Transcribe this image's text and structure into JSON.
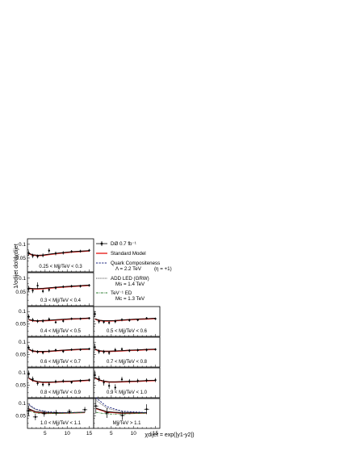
{
  "chart_data": {
    "type": "scatter",
    "ylabel": "1/σdijet dσ/dχdijet",
    "xlabel": "χdijet = exp(|y1-y2|)",
    "xlim": [
      1,
      16
    ],
    "ylim": [
      0,
      0.12
    ],
    "xticks": [
      5,
      10,
      15
    ],
    "yticks": [
      0.05,
      0.1
    ],
    "legend": {
      "placement": "right of top panels",
      "entries": [
        {
          "label": "DØ   0.7 fb⁻¹",
          "style": "data",
          "color": "#000000"
        },
        {
          "label": "Standard Model",
          "style": "solid",
          "color": "#e8231f"
        },
        {
          "label": "Quark Compositeness",
          "sub1": "Λ = 2.2 TeV",
          "sub2": "(η = +1)",
          "style": "dashed",
          "color": "#1a237e"
        },
        {
          "label": "ADD LED  (GRW)",
          "sub1": "Ms = 1.4 TeV",
          "style": "dotted",
          "color": "#333333"
        },
        {
          "label": "TeV⁻¹ ED",
          "sub1": "Mc = 1.3 TeV",
          "style": "dashdot",
          "color": "#2e7d32"
        }
      ]
    },
    "panels": [
      {
        "label": "0.25 < Mjj/TeV < 0.3",
        "x": [
          1.3,
          2.2,
          3.3,
          4.5,
          5.9,
          7.4,
          9.1,
          11.0,
          13.0,
          15.0
        ],
        "y": [
          0.068,
          0.058,
          0.056,
          0.06,
          0.077,
          0.067,
          0.069,
          0.074,
          0.075,
          0.078
        ],
        "err": [
          0.01,
          0.008,
          0.007,
          0.007,
          0.008,
          0.007,
          0.006,
          0.005,
          0.005,
          0.005
        ],
        "sm": [
          0.066,
          0.061,
          0.059,
          0.06,
          0.063,
          0.066,
          0.069,
          0.072,
          0.074,
          0.076
        ]
      },
      {
        "label": "0.3 < Mjj/TeV < 0.4",
        "x": [
          1.3,
          2.2,
          3.3,
          4.5,
          5.9,
          7.4,
          9.1,
          11.0,
          13.0,
          15.0
        ],
        "y": [
          0.062,
          0.055,
          0.073,
          0.053,
          0.058,
          0.065,
          0.069,
          0.071,
          0.071,
          0.074
        ],
        "err": [
          0.01,
          0.009,
          0.012,
          0.007,
          0.007,
          0.006,
          0.005,
          0.005,
          0.005,
          0.005
        ],
        "sm": [
          0.063,
          0.061,
          0.061,
          0.062,
          0.064,
          0.066,
          0.068,
          0.07,
          0.072,
          0.074
        ]
      },
      {
        "label": "0.4 < Mjj/TeV < 0.5",
        "x": [
          1.3,
          2.2,
          3.3,
          4.5,
          5.9,
          7.4,
          9.1,
          11.0,
          13.0,
          15.0
        ],
        "y": [
          0.079,
          0.066,
          0.061,
          0.062,
          0.069,
          0.057,
          0.062,
          0.071,
          0.071,
          0.073
        ],
        "err": [
          0.01,
          0.008,
          0.007,
          0.007,
          0.007,
          0.006,
          0.006,
          0.005,
          0.005,
          0.005
        ],
        "sm": [
          0.067,
          0.063,
          0.062,
          0.063,
          0.064,
          0.066,
          0.068,
          0.07,
          0.071,
          0.073
        ]
      },
      {
        "label": "0.5 < Mjj/TeV < 0.6",
        "x": [
          1.3,
          2.2,
          3.3,
          4.5,
          5.9,
          7.4,
          9.1,
          11.0,
          13.0,
          15.0
        ],
        "y": [
          0.09,
          0.06,
          0.058,
          0.055,
          0.06,
          0.067,
          0.065,
          0.066,
          0.073,
          0.071
        ],
        "err": [
          0.012,
          0.008,
          0.007,
          0.007,
          0.007,
          0.006,
          0.006,
          0.005,
          0.005,
          0.005
        ],
        "sm": [
          0.07,
          0.064,
          0.062,
          0.062,
          0.063,
          0.065,
          0.067,
          0.069,
          0.07,
          0.072
        ]
      },
      {
        "label": "0.6 < Mjj/TeV < 0.7",
        "x": [
          1.3,
          2.2,
          3.3,
          4.5,
          5.9,
          7.4,
          9.1,
          11.0,
          13.0,
          15.0
        ],
        "y": [
          0.078,
          0.065,
          0.061,
          0.058,
          0.064,
          0.068,
          0.063,
          0.07,
          0.07,
          0.073
        ],
        "err": [
          0.01,
          0.008,
          0.007,
          0.007,
          0.007,
          0.006,
          0.006,
          0.005,
          0.005,
          0.005
        ],
        "sm": [
          0.071,
          0.064,
          0.062,
          0.062,
          0.063,
          0.065,
          0.067,
          0.069,
          0.071,
          0.072
        ]
      },
      {
        "label": "0.7 < Mjj/TeV < 0.8",
        "x": [
          1.3,
          2.2,
          3.3,
          4.5,
          5.9,
          7.4,
          9.1,
          11.0,
          13.0,
          15.0
        ],
        "y": [
          0.08,
          0.062,
          0.061,
          0.057,
          0.069,
          0.072,
          0.066,
          0.068,
          0.069,
          0.071
        ],
        "err": [
          0.014,
          0.009,
          0.008,
          0.008,
          0.008,
          0.007,
          0.006,
          0.006,
          0.006,
          0.005
        ],
        "sm": [
          0.072,
          0.065,
          0.063,
          0.063,
          0.064,
          0.065,
          0.067,
          0.068,
          0.07,
          0.071
        ]
      },
      {
        "label": "0.8 < Mjj/TeV < 0.9",
        "x": [
          1.3,
          2.2,
          3.3,
          4.5,
          5.9,
          7.4,
          9.1,
          11.0,
          13.0,
          15.0
        ],
        "y": [
          0.095,
          0.075,
          0.058,
          0.053,
          0.054,
          0.065,
          0.067,
          0.062,
          0.068,
          0.071
        ],
        "err": [
          0.014,
          0.01,
          0.009,
          0.008,
          0.008,
          0.007,
          0.007,
          0.006,
          0.006,
          0.006
        ],
        "sm": [
          0.078,
          0.069,
          0.064,
          0.062,
          0.062,
          0.063,
          0.065,
          0.066,
          0.068,
          0.07
        ]
      },
      {
        "label": "0.9 < Mjj/TeV < 1.0",
        "x": [
          1.3,
          2.2,
          3.3,
          4.5,
          5.9,
          7.4,
          9.1,
          11.0,
          13.0,
          15.0
        ],
        "y": [
          0.091,
          0.076,
          0.061,
          0.048,
          0.041,
          0.074,
          0.066,
          0.068,
          0.07,
          0.071
        ],
        "err": [
          0.018,
          0.012,
          0.012,
          0.012,
          0.013,
          0.01,
          0.009,
          0.008,
          0.008,
          0.008
        ],
        "sm": [
          0.08,
          0.071,
          0.066,
          0.063,
          0.063,
          0.064,
          0.065,
          0.066,
          0.068,
          0.069
        ]
      },
      {
        "label": "1.0 < Mjj/TeV < 1.1",
        "x": [
          1.3,
          2.8,
          4.8,
          7.5,
          10.5,
          14.0
        ],
        "y": [
          0.071,
          0.046,
          0.059,
          0.063,
          0.068,
          0.075
        ],
        "err": [
          0.02,
          0.013,
          0.012,
          0.011,
          0.01,
          0.011
        ],
        "sm": [
          0.078,
          0.066,
          0.062,
          0.061,
          0.062,
          0.064
        ]
      },
      {
        "label": "Mjj/TeV > 1.1",
        "x": [
          1.5,
          4.0,
          7.5,
          13.0
        ],
        "y": [
          0.09,
          0.062,
          0.052,
          0.077
        ],
        "err": [
          0.03,
          0.02,
          0.018,
          0.02
        ],
        "sm": [
          0.08,
          0.066,
          0.061,
          0.062
        ]
      }
    ]
  }
}
